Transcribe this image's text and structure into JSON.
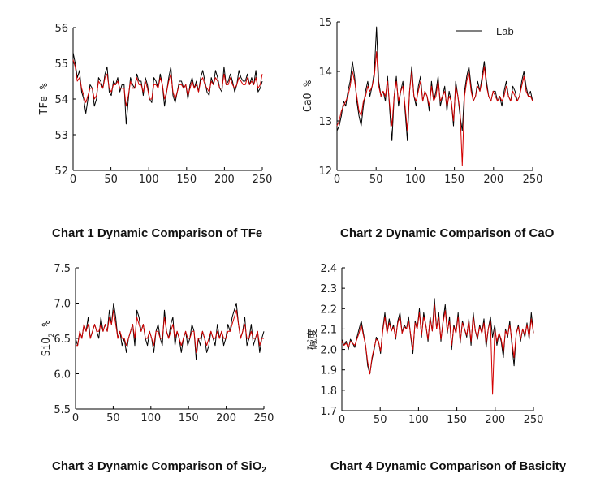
{
  "chart_data": [
    {
      "type": "line",
      "ylabel": "TFe %",
      "xlim": [
        0,
        250
      ],
      "ylim": [
        52,
        56
      ],
      "xticks": [
        0,
        50,
        100,
        150,
        200,
        250
      ],
      "yticks": [
        52,
        53,
        54,
        55,
        56
      ],
      "series": [
        {
          "color": "#000000",
          "values": [
            55.3,
            55.0,
            54.6,
            54.8,
            54.2,
            54.0,
            53.6,
            54.0,
            54.4,
            54.3,
            53.8,
            54.0,
            54.6,
            54.5,
            54.3,
            54.7,
            54.9,
            54.2,
            54.1,
            54.5,
            54.4,
            54.6,
            54.2,
            54.4,
            54.4,
            53.3,
            54.0,
            54.6,
            54.4,
            54.3,
            54.7,
            54.5,
            54.5,
            54.1,
            54.6,
            54.4,
            54.0,
            53.9,
            54.6,
            54.5,
            54.3,
            54.7,
            54.4,
            53.8,
            54.2,
            54.6,
            54.9,
            54.1,
            53.9,
            54.2,
            54.5,
            54.5,
            54.3,
            54.4,
            54.0,
            54.4,
            54.6,
            54.3,
            54.5,
            54.2,
            54.6,
            54.8,
            54.5,
            54.2,
            54.1,
            54.6,
            54.4,
            54.8,
            54.6,
            54.3,
            54.2,
            54.9,
            54.4,
            54.5,
            54.7,
            54.5,
            54.2,
            54.4,
            54.8,
            54.6,
            54.5,
            54.5,
            54.7,
            54.4,
            54.6,
            54.4,
            54.8,
            54.2,
            54.3,
            54.5
          ]
        },
        {
          "color": "#d40000",
          "values": [
            55.1,
            54.9,
            54.5,
            54.6,
            54.3,
            54.1,
            53.9,
            54.1,
            54.3,
            54.3,
            54.0,
            54.1,
            54.5,
            54.4,
            54.3,
            54.6,
            54.7,
            54.3,
            54.2,
            54.4,
            54.4,
            54.5,
            54.3,
            54.3,
            54.3,
            53.8,
            54.1,
            54.5,
            54.3,
            54.3,
            54.6,
            54.4,
            54.4,
            54.2,
            54.5,
            54.3,
            54.0,
            54.0,
            54.4,
            54.4,
            54.3,
            54.6,
            54.4,
            54.0,
            54.2,
            54.5,
            54.7,
            54.2,
            54.0,
            54.2,
            54.4,
            54.4,
            54.3,
            54.4,
            54.1,
            54.3,
            54.5,
            54.3,
            54.4,
            54.2,
            54.5,
            54.6,
            54.4,
            54.3,
            54.2,
            54.5,
            54.4,
            54.6,
            54.5,
            54.3,
            54.3,
            54.7,
            54.4,
            54.4,
            54.6,
            54.4,
            54.3,
            54.4,
            54.6,
            54.5,
            54.4,
            54.4,
            54.6,
            54.4,
            54.5,
            54.4,
            54.6,
            54.3,
            54.4,
            54.7
          ]
        }
      ]
    },
    {
      "type": "line",
      "ylabel": "CaO %",
      "xlim": [
        0,
        250
      ],
      "ylim": [
        12,
        15
      ],
      "xticks": [
        0,
        50,
        100,
        150,
        200,
        250
      ],
      "yticks": [
        12,
        13,
        14,
        15
      ],
      "legend": "Lab",
      "series": [
        {
          "name": "Lab",
          "color": "#000000",
          "values": [
            12.8,
            12.9,
            13.1,
            13.4,
            13.3,
            13.6,
            13.8,
            14.2,
            13.9,
            13.4,
            13.1,
            12.9,
            13.3,
            13.6,
            13.8,
            13.5,
            13.7,
            14.0,
            14.9,
            13.8,
            13.5,
            13.6,
            13.4,
            13.9,
            13.2,
            12.6,
            13.5,
            13.9,
            13.3,
            13.6,
            13.8,
            13.2,
            12.6,
            13.6,
            14.1,
            13.5,
            13.3,
            13.7,
            13.9,
            13.4,
            13.6,
            13.5,
            13.2,
            13.8,
            13.4,
            13.6,
            13.9,
            13.3,
            13.5,
            13.7,
            13.2,
            13.6,
            13.4,
            12.9,
            13.8,
            13.5,
            13.1,
            12.8,
            13.6,
            13.9,
            14.1,
            13.7,
            13.4,
            13.5,
            13.8,
            13.6,
            13.9,
            14.2,
            13.8,
            13.5,
            13.4,
            13.6,
            13.6,
            13.4,
            13.5,
            13.3,
            13.6,
            13.8,
            13.5,
            13.4,
            13.7,
            13.6,
            13.4,
            13.5,
            13.8,
            14.0,
            13.7,
            13.5,
            13.6,
            13.4
          ]
        },
        {
          "color": "#d40000",
          "values": [
            12.9,
            13.0,
            13.2,
            13.3,
            13.4,
            13.5,
            13.7,
            14.0,
            13.8,
            13.5,
            13.2,
            13.1,
            13.4,
            13.5,
            13.7,
            13.6,
            13.7,
            13.9,
            14.4,
            13.7,
            13.5,
            13.6,
            13.5,
            13.8,
            13.3,
            12.9,
            13.5,
            13.8,
            13.4,
            13.6,
            13.7,
            13.3,
            12.8,
            13.6,
            14.0,
            13.5,
            13.4,
            13.6,
            13.8,
            13.4,
            13.6,
            13.5,
            13.3,
            13.7,
            13.4,
            13.5,
            13.8,
            13.4,
            13.5,
            13.6,
            13.3,
            13.5,
            13.4,
            13.0,
            13.7,
            13.5,
            13.2,
            12.1,
            13.5,
            13.8,
            14.0,
            13.6,
            13.4,
            13.5,
            13.7,
            13.6,
            13.8,
            14.1,
            13.7,
            13.5,
            13.4,
            13.6,
            13.5,
            13.4,
            13.5,
            13.4,
            13.5,
            13.7,
            13.5,
            13.4,
            13.6,
            13.5,
            13.4,
            13.5,
            13.7,
            13.9,
            13.6,
            13.5,
            13.5,
            13.4
          ]
        }
      ]
    },
    {
      "type": "line",
      "ylabel": "SiO2 %",
      "xlim": [
        0,
        250
      ],
      "ylim": [
        5.5,
        7.5
      ],
      "xticks": [
        0,
        50,
        100,
        150,
        200,
        250
      ],
      "yticks": [
        5.5,
        6.0,
        6.5,
        7.0,
        7.5
      ],
      "series": [
        {
          "color": "#000000",
          "values": [
            6.5,
            6.4,
            6.6,
            6.5,
            6.7,
            6.6,
            6.8,
            6.5,
            6.6,
            6.7,
            6.6,
            6.5,
            6.8,
            6.6,
            6.7,
            6.6,
            6.9,
            6.7,
            7.0,
            6.8,
            6.5,
            6.6,
            6.4,
            6.5,
            6.3,
            6.5,
            6.6,
            6.7,
            6.4,
            6.9,
            6.8,
            6.6,
            6.7,
            6.5,
            6.4,
            6.6,
            6.5,
            6.3,
            6.6,
            6.7,
            6.5,
            6.4,
            6.9,
            6.6,
            6.5,
            6.7,
            6.8,
            6.4,
            6.6,
            6.5,
            6.3,
            6.5,
            6.6,
            6.4,
            6.5,
            6.7,
            6.6,
            6.2,
            6.5,
            6.4,
            6.6,
            6.5,
            6.3,
            6.4,
            6.6,
            6.5,
            6.4,
            6.7,
            6.5,
            6.6,
            6.4,
            6.5,
            6.7,
            6.6,
            6.8,
            6.9,
            7.0,
            6.7,
            6.5,
            6.6,
            6.8,
            6.4,
            6.5,
            6.7,
            6.4,
            6.5,
            6.6,
            6.3,
            6.5,
            6.6
          ]
        },
        {
          "color": "#d40000",
          "values": [
            6.4,
            6.4,
            6.6,
            6.5,
            6.7,
            6.6,
            6.7,
            6.5,
            6.6,
            6.7,
            6.6,
            6.6,
            6.7,
            6.6,
            6.7,
            6.6,
            6.8,
            6.7,
            6.9,
            6.7,
            6.5,
            6.6,
            6.5,
            6.5,
            6.4,
            6.5,
            6.6,
            6.7,
            6.5,
            6.8,
            6.7,
            6.6,
            6.7,
            6.5,
            6.5,
            6.6,
            6.5,
            6.4,
            6.6,
            6.6,
            6.5,
            6.5,
            6.8,
            6.6,
            6.5,
            6.6,
            6.7,
            6.5,
            6.6,
            6.5,
            6.4,
            6.5,
            6.6,
            6.5,
            6.5,
            6.6,
            6.6,
            6.3,
            6.5,
            6.5,
            6.6,
            6.5,
            6.4,
            6.5,
            6.6,
            6.5,
            6.5,
            6.6,
            6.5,
            6.6,
            6.5,
            6.5,
            6.6,
            6.6,
            6.7,
            6.8,
            6.9,
            6.7,
            6.5,
            6.6,
            6.7,
            6.5,
            6.5,
            6.6,
            6.5,
            6.5,
            6.6,
            6.4,
            6.5,
            6.5
          ]
        }
      ]
    },
    {
      "type": "line",
      "ylabel": "碱度",
      "xlim": [
        0,
        250
      ],
      "ylim": [
        1.7,
        2.4
      ],
      "xticks": [
        0,
        50,
        100,
        150,
        200,
        250
      ],
      "yticks": [
        1.7,
        1.8,
        1.9,
        2.0,
        2.1,
        2.2,
        2.3,
        2.4
      ],
      "series": [
        {
          "color": "#000000",
          "values": [
            2.05,
            2.02,
            2.04,
            2.0,
            2.05,
            2.03,
            2.01,
            2.06,
            2.1,
            2.14,
            2.08,
            2.02,
            1.92,
            1.88,
            1.95,
            2.0,
            2.06,
            2.04,
            1.98,
            2.1,
            2.18,
            2.08,
            2.15,
            2.09,
            2.12,
            2.05,
            2.14,
            2.18,
            2.08,
            2.12,
            2.1,
            2.16,
            2.06,
            1.98,
            2.14,
            2.1,
            2.2,
            2.06,
            2.18,
            2.12,
            2.04,
            2.16,
            2.09,
            2.25,
            2.1,
            2.18,
            2.04,
            2.14,
            2.22,
            2.08,
            2.16,
            2.0,
            2.12,
            2.08,
            2.18,
            2.03,
            2.14,
            2.1,
            2.06,
            2.15,
            2.02,
            2.18,
            2.09,
            2.05,
            2.12,
            2.08,
            2.15,
            2.01,
            2.1,
            2.16,
            2.06,
            2.12,
            2.02,
            2.08,
            2.04,
            1.96,
            2.1,
            2.06,
            2.14,
            2.02,
            1.92,
            2.08,
            2.12,
            2.04,
            2.1,
            2.06,
            2.13,
            2.05,
            2.18,
            2.08
          ]
        },
        {
          "color": "#d40000",
          "values": [
            2.04,
            2.02,
            2.03,
            2.01,
            2.04,
            2.03,
            2.02,
            2.05,
            2.08,
            2.12,
            2.07,
            2.02,
            1.94,
            1.88,
            1.96,
            2.01,
            2.05,
            2.04,
            1.99,
            2.09,
            2.16,
            2.08,
            2.13,
            2.09,
            2.11,
            2.06,
            2.13,
            2.16,
            2.08,
            2.11,
            2.1,
            2.14,
            2.07,
            2.0,
            2.13,
            2.1,
            2.18,
            2.07,
            2.16,
            2.12,
            2.05,
            2.15,
            2.09,
            2.22,
            2.1,
            2.16,
            2.05,
            2.13,
            2.19,
            2.09,
            2.14,
            2.02,
            2.11,
            2.08,
            2.16,
            2.04,
            2.13,
            2.1,
            2.07,
            2.14,
            2.04,
            2.16,
            2.09,
            2.06,
            2.11,
            2.08,
            2.13,
            2.03,
            2.1,
            2.14,
            1.78,
            2.1,
            2.04,
            2.08,
            2.05,
            1.99,
            2.09,
            2.07,
            2.12,
            2.04,
            1.96,
            2.08,
            2.11,
            2.05,
            2.1,
            2.07,
            2.12,
            2.06,
            2.15,
            2.08
          ]
        }
      ]
    }
  ],
  "captions": {
    "chart1": "Chart 1 Dynamic Comparison of TFe",
    "chart2": "Chart 2 Dynamic Comparison of CaO",
    "chart3_prefix": "Chart 3 Dynamic Comparison of SiO",
    "chart3_sub": "2",
    "chart4": "Chart 4 Dynamic Comparison of Basicity"
  }
}
